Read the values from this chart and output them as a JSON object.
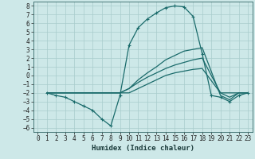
{
  "xlabel": "Humidex (Indice chaleur)",
  "xlim": [
    -0.5,
    23.5
  ],
  "ylim": [
    -6.5,
    8.5
  ],
  "yticks": [
    8,
    7,
    6,
    5,
    4,
    3,
    2,
    1,
    0,
    -1,
    -2,
    -3,
    -4,
    -5,
    -6
  ],
  "xticks": [
    0,
    1,
    2,
    3,
    4,
    5,
    6,
    7,
    8,
    9,
    10,
    11,
    12,
    13,
    14,
    15,
    16,
    17,
    18,
    19,
    20,
    21,
    22,
    23
  ],
  "bg_color": "#cde8e8",
  "grid_color": "#a8cccc",
  "line_color": "#1a6b6b",
  "line1_x": [
    1,
    2,
    3,
    4,
    5,
    6,
    7,
    8,
    9,
    10,
    11,
    12,
    13,
    14,
    15,
    16,
    17,
    18,
    19,
    20,
    21,
    22,
    23
  ],
  "line1_y": [
    -2,
    -2.3,
    -2.5,
    -3.0,
    -3.5,
    -4.0,
    -5.0,
    -5.8,
    -2.3,
    3.5,
    5.5,
    6.5,
    7.2,
    7.8,
    8.0,
    7.9,
    6.8,
    2.5,
    -2.3,
    -2.5,
    -3.0,
    -2.3,
    -2.0
  ],
  "line2_x": [
    1,
    2,
    3,
    9,
    10,
    11,
    12,
    13,
    14,
    15,
    16,
    17,
    18,
    20,
    21,
    22,
    23
  ],
  "line2_y": [
    -2,
    -2,
    -2,
    -2,
    -1.5,
    -0.5,
    0.3,
    1.0,
    1.8,
    2.3,
    2.8,
    3.0,
    3.2,
    -2.3,
    -2.8,
    -2.0,
    -2.0
  ],
  "line3_x": [
    1,
    2,
    3,
    9,
    10,
    11,
    12,
    13,
    14,
    15,
    16,
    17,
    18,
    20,
    21,
    22,
    23
  ],
  "line3_y": [
    -2,
    -2,
    -2,
    -2,
    -1.5,
    -0.8,
    -0.2,
    0.3,
    0.8,
    1.2,
    1.5,
    1.8,
    2.0,
    -2.0,
    -2.5,
    -2.0,
    -2.0
  ],
  "line4_x": [
    1,
    2,
    3,
    9,
    10,
    11,
    12,
    13,
    14,
    15,
    16,
    17,
    18,
    20,
    21,
    22,
    23
  ],
  "line4_y": [
    -2,
    -2,
    -2,
    -2,
    -2,
    -1.5,
    -1.0,
    -0.5,
    0.0,
    0.3,
    0.5,
    0.7,
    0.8,
    -2.0,
    -2.0,
    -2.0,
    -2.0
  ],
  "tick_fontsize": 5.5,
  "xlabel_fontsize": 6.5
}
